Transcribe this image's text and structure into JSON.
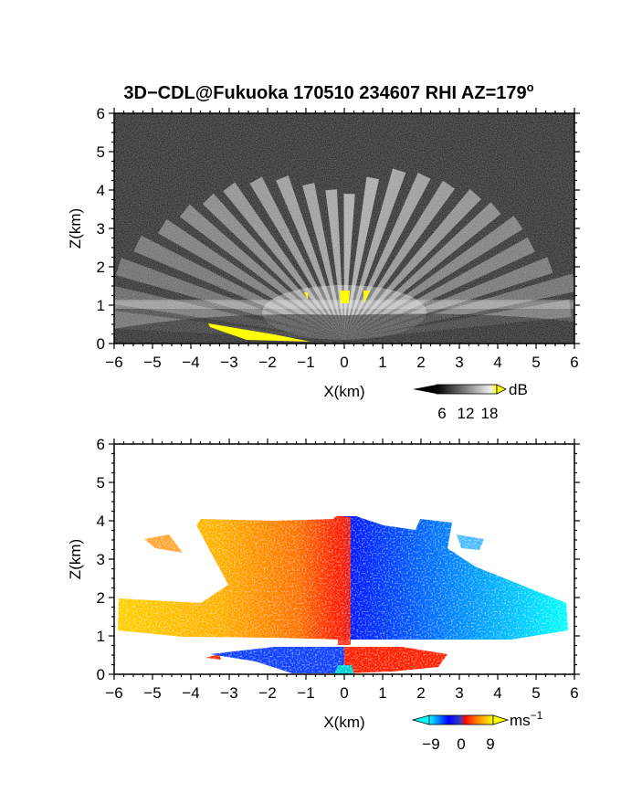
{
  "title": "3D−CDL@Fukuoka 170510 234607 RHI AZ=179",
  "title_superscript": "o",
  "chart_data": [
    {
      "type": "heatmap",
      "name": "reflectivity",
      "xlabel": "X(km)",
      "ylabel": "Z(km)",
      "xlim": [
        -6,
        6
      ],
      "ylim": [
        0,
        6
      ],
      "xticks": [
        "−6",
        "−5",
        "−4",
        "−3",
        "−2",
        "−1",
        "0",
        "1",
        "2",
        "3",
        "4",
        "5",
        "6"
      ],
      "yticks": [
        "0",
        "1",
        "2",
        "3",
        "4",
        "5",
        "6"
      ],
      "colorbar": {
        "unit": "dB",
        "ticks": [
          "6",
          "12",
          "18"
        ],
        "colors": {
          "low": "#000000",
          "high": "#ffffff",
          "overflow": "#ffff00"
        }
      },
      "background_color": "#2b2b2b",
      "saturated_color": "#ffff00"
    },
    {
      "type": "heatmap",
      "name": "doppler_velocity",
      "xlabel": "X(km)",
      "ylabel": "Z(km)",
      "xlim": [
        -6,
        6
      ],
      "ylim": [
        0,
        6
      ],
      "xticks": [
        "−6",
        "−5",
        "−4",
        "−3",
        "−2",
        "−1",
        "0",
        "1",
        "2",
        "3",
        "4",
        "5",
        "6"
      ],
      "yticks": [
        "0",
        "1",
        "2",
        "3",
        "4",
        "5",
        "6"
      ],
      "colorbar": {
        "unit": "ms",
        "unit_superscript": "−1",
        "ticks": [
          "−9",
          "0",
          "9"
        ],
        "colors": [
          "#00ffff",
          "#0000ff",
          "#ff0000",
          "#ff8000",
          "#ffff00"
        ]
      }
    }
  ]
}
